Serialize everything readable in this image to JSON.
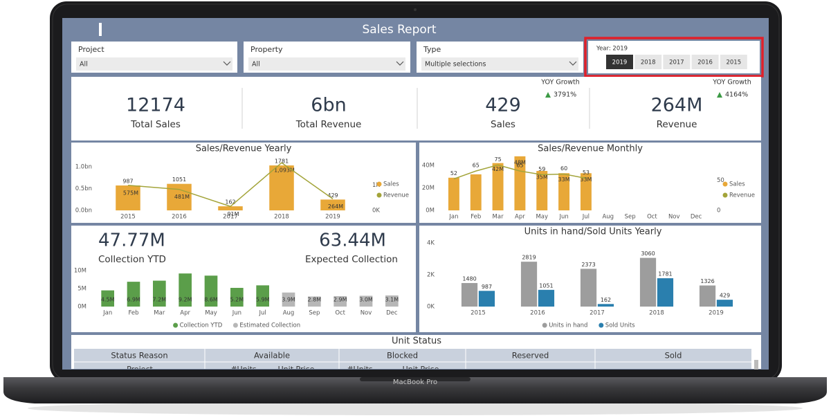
{
  "header": {
    "title": "Sales Report"
  },
  "filters": [
    {
      "label": "Project",
      "value": "All"
    },
    {
      "label": "Property",
      "value": "All"
    },
    {
      "label": "Type",
      "value": "Multiple selections"
    }
  ],
  "year_slicer": {
    "label": "Year: 2019",
    "options": [
      "2019",
      "2018",
      "2017",
      "2016",
      "2015"
    ],
    "selected": "2019"
  },
  "kpis": [
    {
      "value": "12174",
      "label": "Total Sales"
    },
    {
      "value": "6bn",
      "label": "Total Revenue"
    },
    {
      "value": "429",
      "label": "Sales",
      "growth_label": "YOY Growth",
      "growth": "3791%"
    },
    {
      "value": "264M",
      "label": "Revenue",
      "growth_label": "YOY Growth",
      "growth": "4164%"
    }
  ],
  "collection_kpis": [
    {
      "value": "47.77M",
      "label": "Collection YTD"
    },
    {
      "value": "63.44M",
      "label": "Expected Collection"
    }
  ],
  "charts": [
    {
      "type": "bar",
      "title": "Sales/Revenue Yearly",
      "categories": [
        "2015",
        "2016",
        "2017",
        "2018",
        "2019"
      ],
      "series": [
        {
          "name": "Sales",
          "type": "bar",
          "axis": "y2",
          "color": "#e8a838",
          "values": [
            987,
            1051,
            162,
            1781,
            429
          ]
        },
        {
          "name": "Revenue",
          "type": "line",
          "color": "#a3a43a",
          "values": [
            575000000,
            481000000,
            91000000,
            1093000000,
            264000000
          ],
          "value_labels": [
            "575M",
            "481M",
            "91M",
            "1,093M",
            "264M"
          ]
        }
      ],
      "ylim": [
        0,
        1100000000
      ],
      "yticks": [
        {
          "value": 0,
          "label": "0.0bn"
        },
        {
          "value": 500000000,
          "label": "0.5bn"
        },
        {
          "value": 1000000000,
          "label": "1.0bn"
        }
      ],
      "y2lim": [
        0,
        1900
      ],
      "y2ticks": [
        {
          "value": 0,
          "label": "0K"
        },
        {
          "value": 1000,
          "label": "1K"
        }
      ],
      "legend": "right"
    },
    {
      "type": "bar",
      "title": "Sales/Revenue Monthly",
      "categories": [
        "Jan",
        "Feb",
        "Mar",
        "Apr",
        "May",
        "Jun",
        "Jul",
        "Aug",
        "Sep",
        "Oct",
        "Nov",
        "Dec"
      ],
      "series": [
        {
          "name": "Sales",
          "type": "bar",
          "color": "#e8a838",
          "values": [
            29000000,
            32000000,
            42000000,
            48000000,
            35000000,
            33000000,
            33000000,
            null,
            null,
            null,
            null,
            null
          ],
          "value_labels": [
            null,
            null,
            "42M",
            "48M",
            "35M",
            "33M",
            "33M",
            null,
            null,
            null,
            null,
            null
          ]
        },
        {
          "name": "Revenue",
          "type": "line",
          "axis": "y2",
          "color": "#a3a43a",
          "values": [
            52,
            65,
            75,
            65,
            59,
            60,
            53,
            null,
            null,
            null,
            null,
            null
          ]
        }
      ],
      "ylim": [
        0,
        43000000
      ],
      "yticks": [
        {
          "value": 0,
          "label": "0M"
        },
        {
          "value": 20000000,
          "label": "20M"
        },
        {
          "value": 40000000,
          "label": "40M"
        }
      ],
      "y2lim": [
        0,
        80
      ],
      "y2ticks": [
        0,
        50
      ],
      "legend": "right"
    },
    {
      "type": "bar",
      "categories": [
        "Jan",
        "Feb",
        "Mar",
        "Apr",
        "May",
        "Jun",
        "Jul",
        "Aug",
        "Sep",
        "Oct",
        "Nov",
        "Dec"
      ],
      "series": [
        {
          "name": "Collection YTD",
          "type": "bar",
          "color": "#5b9e4a",
          "values": [
            4500000,
            6900000,
            7200000,
            9200000,
            8600000,
            5200000,
            5900000,
            null,
            null,
            null,
            null,
            null
          ],
          "value_labels": [
            "4.5M",
            "6.9M",
            "7.2M",
            "9.2M",
            "8.6M",
            "5.2M",
            "5.9M",
            null,
            null,
            null,
            null,
            null
          ]
        },
        {
          "name": "Estimated Collection",
          "type": "bar",
          "color": "#b7b7b7",
          "values": [
            null,
            null,
            null,
            null,
            null,
            null,
            null,
            3900000,
            2800000,
            2900000,
            3000000,
            3100000
          ],
          "value_labels": [
            null,
            null,
            null,
            null,
            null,
            null,
            null,
            "3.9M",
            "2.8M",
            "2.9M",
            "3.0M",
            "3.1M"
          ]
        }
      ],
      "ylim": [
        0,
        10000000
      ],
      "yticks": [
        {
          "value": 0,
          "label": "0M"
        },
        {
          "value": 5000000,
          "label": "5M"
        },
        {
          "value": 10000000,
          "label": "10M"
        }
      ],
      "legend": "bottom"
    },
    {
      "type": "bar",
      "title": "Units in hand/Sold Units Yearly",
      "categories": [
        "2015",
        "2016",
        "2017",
        "2018",
        "2019"
      ],
      "series": [
        {
          "name": "Units in hand",
          "type": "bar",
          "color": "#9d9d9d",
          "values": [
            1480,
            2819,
            2373,
            3060,
            1326
          ]
        },
        {
          "name": "Sold Units",
          "type": "bar",
          "color": "#2a7fae",
          "values": [
            987,
            1051,
            162,
            1781,
            429
          ]
        }
      ],
      "ylim": [
        0,
        4000
      ],
      "yticks": [
        {
          "value": 0,
          "label": "0K"
        },
        {
          "value": 2000,
          "label": "2K"
        },
        {
          "value": 4000,
          "label": "4K"
        }
      ],
      "legend": "bottom"
    }
  ],
  "table": {
    "title": "Unit Status",
    "columns": [
      "Status Reason",
      "Available",
      "Blocked",
      "Reserved",
      "Sold"
    ],
    "subcolumns": [
      "Project",
      "#Units",
      "Unit Price",
      "#Units",
      "Unit Price"
    ]
  },
  "device": {
    "label": "MacBook Pro"
  }
}
